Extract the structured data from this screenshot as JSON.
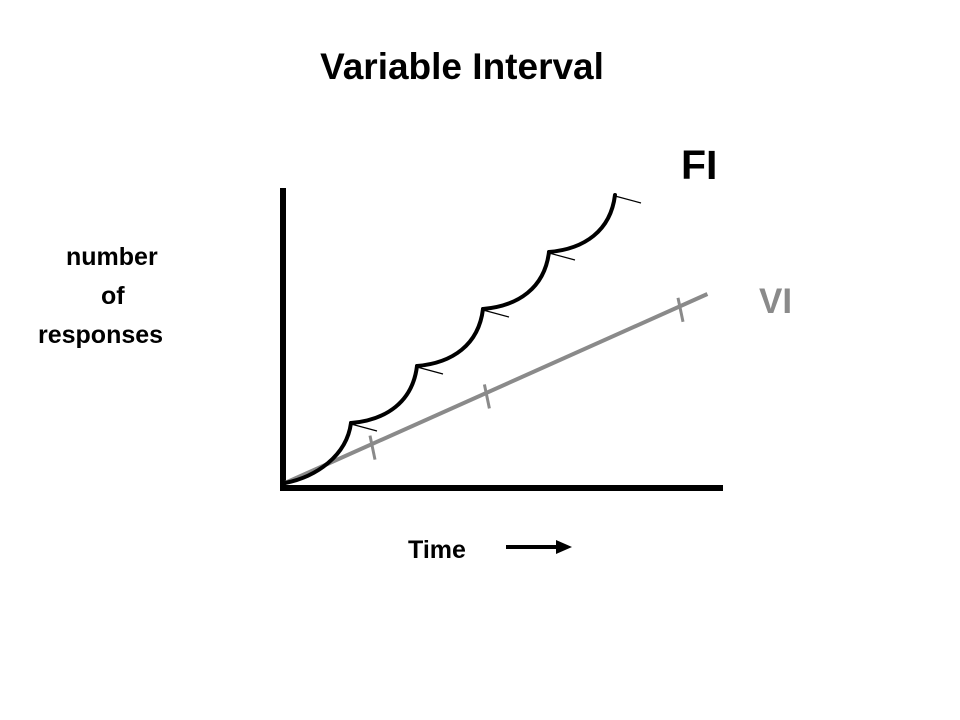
{
  "chart_data": {
    "type": "line",
    "title": "Variable Interval",
    "xlabel": "Time",
    "ylabel_lines": [
      "number",
      "of",
      "responses"
    ],
    "xlim": [
      0,
      10
    ],
    "ylim": [
      0,
      10
    ],
    "grid": false,
    "series": [
      {
        "name": "FI",
        "color": "#000000",
        "shape": "scalloped cumulative record",
        "scallops": [
          [
            [
              0.0,
              0.0
            ],
            [
              0.7,
              0.2
            ],
            [
              1.4,
              0.9
            ],
            [
              1.5,
              2.0
            ]
          ],
          [
            [
              1.5,
              2.0
            ],
            [
              2.3,
              2.1
            ],
            [
              2.9,
              2.7
            ],
            [
              3.0,
              3.9
            ]
          ],
          [
            [
              3.0,
              3.9
            ],
            [
              3.8,
              4.0
            ],
            [
              4.4,
              4.6
            ],
            [
              4.5,
              5.8
            ]
          ],
          [
            [
              4.5,
              5.8
            ],
            [
              5.3,
              5.9
            ],
            [
              5.9,
              6.5
            ],
            [
              6.0,
              7.7
            ]
          ],
          [
            [
              6.0,
              7.7
            ],
            [
              6.8,
              7.8
            ],
            [
              7.4,
              8.4
            ],
            [
              7.5,
              9.6
            ]
          ]
        ],
        "reinforcement_x": [
          1.5,
          3.0,
          4.5,
          6.0,
          7.5
        ]
      },
      {
        "name": "VI",
        "color": "#8a8a8a",
        "shape": "steady straight line",
        "x": [
          0,
          9.6
        ],
        "y": [
          0,
          6.3
        ],
        "reinforcement_x": [
          2.0,
          4.6,
          9.0
        ]
      }
    ]
  },
  "axis": {
    "x_arrow": "right-arrow-icon"
  }
}
